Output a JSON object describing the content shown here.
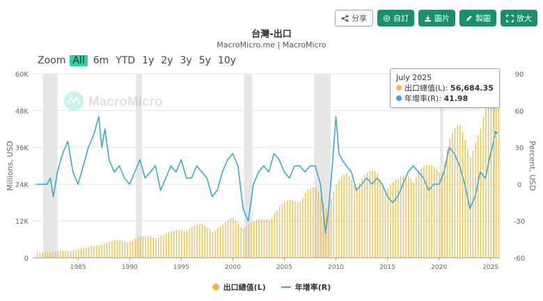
{
  "toolbar": {
    "share": "分享",
    "custom": "自訂",
    "image": "圖片",
    "make": "製圖",
    "enlarge": "放大"
  },
  "header": {
    "title": "台灣-出口",
    "subtitle": "MacroMicro.me | MacroMicro",
    "watermark": "MacroMicro"
  },
  "zoom": {
    "label": "Zoom",
    "options": [
      "All",
      "6m",
      "YTD",
      "1y",
      "2y",
      "3y",
      "5y",
      "10y"
    ],
    "selected": "All"
  },
  "tooltip": {
    "date": "July 2025",
    "l_label": "出口總值(L):",
    "l_value": "56,684.35",
    "r_label": "年增率(R):",
    "r_value": "41.98"
  },
  "colors": {
    "bar": "#f2b93b",
    "line": "#3aa8d6",
    "recession": "#e6e6e6",
    "accent": "#1a8f6b"
  },
  "chart_data": {
    "type": "bar",
    "xlabel": "",
    "ylabel_left": "Millions, USD",
    "ylabel_right": "Percent, USD",
    "x_range": [
      1980.6,
      2025.9
    ],
    "ylim_left": [
      0,
      60000
    ],
    "ylim_right": [
      -60,
      90
    ],
    "left_ticks": [
      "0",
      "12K",
      "24K",
      "36K",
      "48K",
      "60K"
    ],
    "right_ticks": [
      "-60",
      "-30",
      "0",
      "30",
      "60",
      "90"
    ],
    "x_ticks": [
      "1985",
      "1990",
      "1995",
      "2000",
      "2005",
      "2010",
      "2015",
      "2020",
      "2025"
    ],
    "recession_bands": [
      [
        1981.6,
        1983.0
      ],
      [
        1990.6,
        1991.2
      ],
      [
        2001.1,
        2001.9
      ],
      [
        2007.9,
        2009.5
      ],
      [
        2020.1,
        2020.4
      ]
    ],
    "series": [
      {
        "name": "出口總值(L)",
        "type": "bar",
        "x": [
          1981,
          1982,
          1983,
          1984,
          1985,
          1986,
          1987,
          1988,
          1989,
          1990,
          1991,
          1992,
          1993,
          1994,
          1995,
          1996,
          1997,
          1998,
          1999,
          2000,
          2001,
          2002,
          2003,
          2004,
          2005,
          2006,
          2007,
          2008,
          2009,
          2010,
          2011,
          2012,
          2013,
          2014,
          2015,
          2016,
          2017,
          2018,
          2019,
          2020,
          2021,
          2022,
          2023,
          2024,
          2025.5
        ],
        "values": [
          1700,
          1800,
          2000,
          2500,
          2600,
          3300,
          4400,
          5000,
          5500,
          5600,
          6300,
          6800,
          7100,
          7800,
          9300,
          9700,
          10200,
          9300,
          10000,
          12300,
          10300,
          11000,
          12100,
          14700,
          16600,
          18800,
          20600,
          21000,
          17000,
          22500,
          25600,
          25100,
          25600,
          26300,
          23500,
          23400,
          26500,
          28000,
          27500,
          29000,
          37000,
          40000,
          36000,
          39000,
          56684
        ]
      },
      {
        "name": "年增率(R)",
        "type": "line",
        "x": [
          1981.0,
          1981.5,
          1982.0,
          1982.3,
          1982.6,
          1983.0,
          1983.5,
          1984.0,
          1984.5,
          1985.0,
          1985.5,
          1986.0,
          1986.5,
          1987.0,
          1987.3,
          1987.6,
          1988.0,
          1988.5,
          1989.0,
          1989.5,
          1990.0,
          1990.5,
          1991.0,
          1991.5,
          1992.0,
          1992.5,
          1993.0,
          1993.5,
          1994.0,
          1994.5,
          1995.0,
          1995.5,
          1996.0,
          1996.5,
          1997.0,
          1997.5,
          1998.0,
          1998.5,
          1999.0,
          1999.5,
          2000.0,
          2000.5,
          2001.0,
          2001.5,
          2002.0,
          2002.5,
          2003.0,
          2003.5,
          2004.0,
          2004.5,
          2005.0,
          2005.5,
          2006.0,
          2006.5,
          2007.0,
          2007.5,
          2008.0,
          2008.5,
          2009.0,
          2009.3,
          2009.7,
          2010.0,
          2010.3,
          2010.6,
          2011.0,
          2011.5,
          2012.0,
          2012.5,
          2013.0,
          2013.5,
          2014.0,
          2014.5,
          2015.0,
          2015.5,
          2016.0,
          2016.5,
          2017.0,
          2017.5,
          2018.0,
          2018.5,
          2019.0,
          2019.5,
          2020.0,
          2020.5,
          2021.0,
          2021.5,
          2022.0,
          2022.5,
          2023.0,
          2023.5,
          2024.0,
          2024.5,
          2025.0,
          2025.5
        ],
        "values": [
          0,
          0,
          0,
          5,
          -10,
          10,
          25,
          35,
          10,
          0,
          15,
          30,
          40,
          55,
          30,
          45,
          20,
          10,
          15,
          5,
          0,
          10,
          20,
          5,
          10,
          15,
          -5,
          5,
          15,
          10,
          20,
          5,
          5,
          15,
          10,
          5,
          -10,
          -5,
          10,
          20,
          25,
          15,
          -20,
          -30,
          0,
          10,
          15,
          10,
          25,
          20,
          10,
          5,
          15,
          15,
          10,
          15,
          15,
          0,
          -40,
          -20,
          20,
          55,
          25,
          20,
          15,
          10,
          -5,
          0,
          5,
          0,
          5,
          0,
          -10,
          -15,
          -10,
          0,
          10,
          15,
          10,
          5,
          -5,
          0,
          0,
          10,
          30,
          25,
          15,
          0,
          -20,
          -10,
          10,
          5,
          25,
          41.98
        ]
      }
    ]
  }
}
